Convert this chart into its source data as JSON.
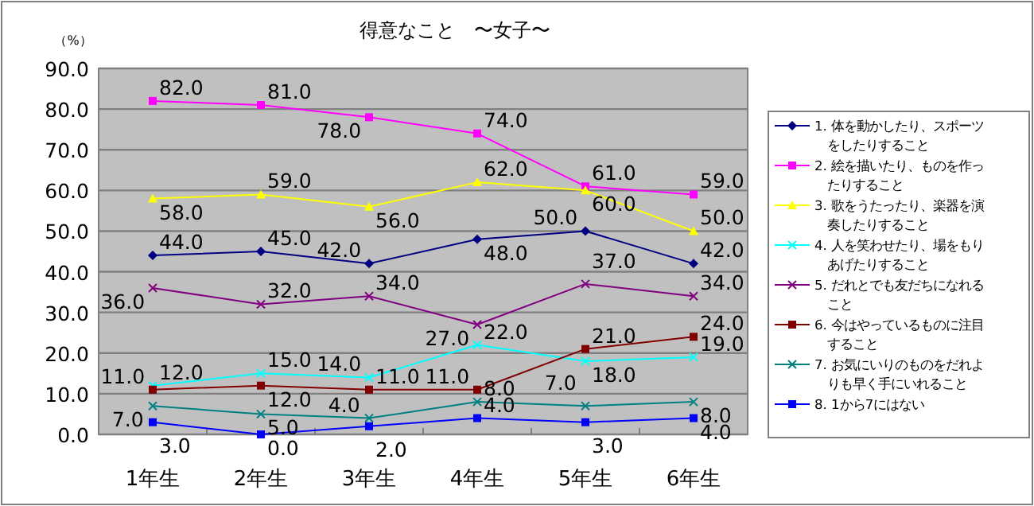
{
  "chart_data": {
    "type": "line",
    "title": "得意なこと　〜女子〜",
    "ylabel": "（%）",
    "categories": [
      "1年生",
      "2年生",
      "3年生",
      "4年生",
      "5年生",
      "6年生"
    ],
    "ylim": [
      0,
      90
    ],
    "yticks": [
      {
        "value": 0,
        "label": "0.0"
      },
      {
        "value": 10,
        "label": "10.0"
      },
      {
        "value": 20,
        "label": "20.0"
      },
      {
        "value": 30,
        "label": "30.0"
      },
      {
        "value": 40,
        "label": "40.0"
      },
      {
        "value": 50,
        "label": "50.0"
      },
      {
        "value": 60,
        "label": "60.0"
      },
      {
        "value": 70,
        "label": "70.0"
      },
      {
        "value": 80,
        "label": "80.0"
      },
      {
        "value": 90,
        "label": "90.0"
      }
    ],
    "grid": "y",
    "legend": "right",
    "series": [
      {
        "name": "1. 体を動かしたり、スポーツをしたりすること",
        "color": "#000080",
        "marker": "diamond",
        "values": [
          44,
          45,
          42,
          48,
          50,
          42
        ],
        "value_labels": [
          "44.0",
          "45.0",
          "42.0",
          "48.0",
          "50.0",
          "42.0"
        ]
      },
      {
        "name": "2. 絵を描いたり、ものを作ったりすること",
        "color": "#ff00ff",
        "marker": "square",
        "values": [
          82,
          81,
          78,
          74,
          61,
          59
        ],
        "value_labels": [
          "82.0",
          "81.0",
          "78.0",
          "74.0",
          "61.0",
          "59.0"
        ]
      },
      {
        "name": "3. 歌をうたったり、楽器を演奏したりすること",
        "color": "#ffff00",
        "marker": "triangle",
        "values": [
          58,
          59,
          56,
          62,
          60,
          50
        ],
        "value_labels": [
          "58.0",
          "59.0",
          "56.0",
          "62.0",
          "60.0",
          "50.0"
        ]
      },
      {
        "name": "4. 人を笑わせたり、場をもりあげたりすること",
        "color": "#00ffff",
        "marker": "cross",
        "values": [
          12,
          15,
          14,
          22,
          18,
          19
        ],
        "value_labels": [
          "12.0",
          "15.0",
          "14.0",
          "22.0",
          "18.0",
          "19.0"
        ]
      },
      {
        "name": "5. だれとでも友だちになれること",
        "color": "#800080",
        "marker": "cross",
        "values": [
          36,
          32,
          34,
          27,
          37,
          34
        ],
        "value_labels": [
          "36.0",
          "32.0",
          "34.0",
          "27.0",
          "37.0",
          "34.0"
        ]
      },
      {
        "name": "6. 今はやっているものに注目すること",
        "color": "#800000",
        "marker": "square",
        "values": [
          11,
          12,
          11,
          11,
          21,
          24
        ],
        "value_labels": [
          "11.0",
          "12.0",
          "11.0",
          "11.0",
          "21.0",
          "24.0"
        ]
      },
      {
        "name": "7. お気にいりのものをだれよりも早く手にいれること",
        "color": "#008080",
        "marker": "cross",
        "values": [
          7,
          5,
          4,
          8,
          7,
          8
        ],
        "value_labels": [
          "7.0",
          "5.0",
          "4.0",
          "8.0",
          "7.0",
          "8.0"
        ]
      },
      {
        "name": "8. 1から7にはない",
        "color": "#0000ff",
        "marker": "square",
        "values": [
          3,
          0,
          2,
          4,
          3,
          4
        ],
        "value_labels": [
          "3.0",
          "0.0",
          "2.0",
          "4.0",
          "3.0",
          "4.0"
        ]
      }
    ]
  }
}
